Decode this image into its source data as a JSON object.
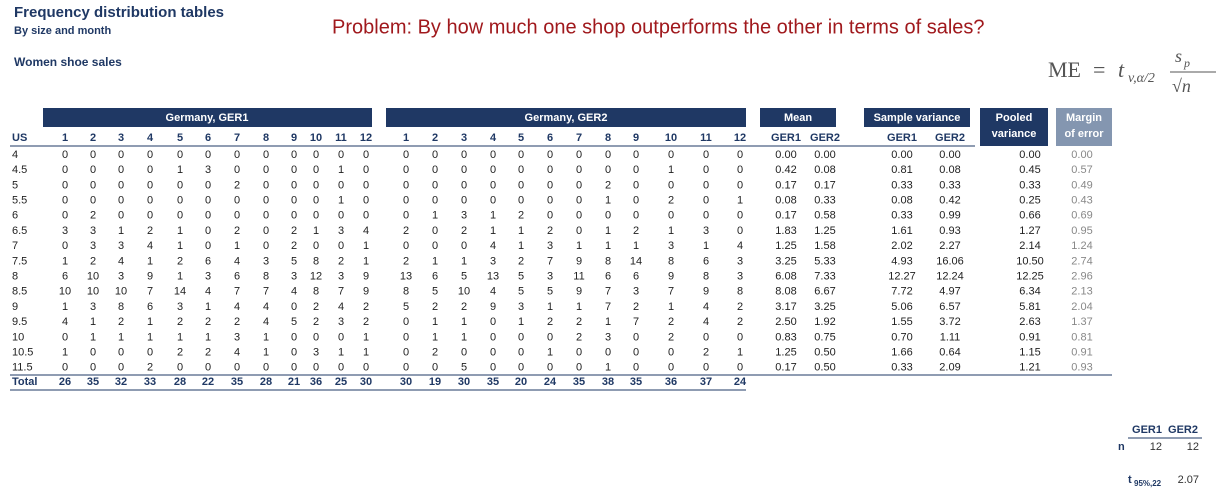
{
  "header": {
    "title": "Frequency distribution tables",
    "subtitle": "By size and month",
    "section": "Women shoe sales"
  },
  "problem": "Problem: By how much one shop outperforms the other in terms of sales?",
  "formula": {
    "lhs": "ME",
    "equals": "=",
    "t": "t",
    "t_sub": "v,α/2",
    "numerator": "s",
    "numerator_sub": "p",
    "denominator": "√n"
  },
  "table": {
    "group_titles": [
      "Germany, GER1",
      "Germany, GER2",
      "Mean",
      "Sample variance"
    ],
    "pooled_title": [
      "Pooled",
      "variance"
    ],
    "margin_title": [
      "Margin",
      "of error"
    ],
    "col_headers": [
      "US",
      "1",
      "2",
      "3",
      "4",
      "5",
      "6",
      "7",
      "8",
      "9",
      "10",
      "11",
      "12",
      "1",
      "2",
      "3",
      "4",
      "5",
      "6",
      "7",
      "8",
      "9",
      "10",
      "11",
      "12",
      "GER1",
      "GER2",
      "GER1",
      "GER2"
    ],
    "rows": [
      [
        "4",
        "0",
        "0",
        "0",
        "0",
        "0",
        "0",
        "0",
        "0",
        "0",
        "0",
        "0",
        "0",
        "0",
        "0",
        "0",
        "0",
        "0",
        "0",
        "0",
        "0",
        "0",
        "0",
        "0",
        "0",
        "0.00",
        "0.00",
        "0.00",
        "0.00",
        "0.00",
        "0.00"
      ],
      [
        "4.5",
        "0",
        "0",
        "0",
        "0",
        "1",
        "3",
        "0",
        "0",
        "0",
        "0",
        "1",
        "0",
        "0",
        "0",
        "0",
        "0",
        "0",
        "0",
        "0",
        "0",
        "0",
        "1",
        "0",
        "0",
        "0.42",
        "0.08",
        "0.81",
        "0.08",
        "0.45",
        "0.57"
      ],
      [
        "5",
        "0",
        "0",
        "0",
        "0",
        "0",
        "0",
        "2",
        "0",
        "0",
        "0",
        "0",
        "0",
        "0",
        "0",
        "0",
        "0",
        "0",
        "0",
        "0",
        "2",
        "0",
        "0",
        "0",
        "0",
        "0.17",
        "0.17",
        "0.33",
        "0.33",
        "0.33",
        "0.49"
      ],
      [
        "5.5",
        "0",
        "0",
        "0",
        "0",
        "0",
        "0",
        "0",
        "0",
        "0",
        "0",
        "1",
        "0",
        "0",
        "0",
        "0",
        "0",
        "0",
        "0",
        "0",
        "1",
        "0",
        "2",
        "0",
        "1",
        "0.08",
        "0.33",
        "0.08",
        "0.42",
        "0.25",
        "0.43"
      ],
      [
        "6",
        "0",
        "2",
        "0",
        "0",
        "0",
        "0",
        "0",
        "0",
        "0",
        "0",
        "0",
        "0",
        "0",
        "1",
        "3",
        "1",
        "2",
        "0",
        "0",
        "0",
        "0",
        "0",
        "0",
        "0",
        "0.17",
        "0.58",
        "0.33",
        "0.99",
        "0.66",
        "0.69"
      ],
      [
        "6.5",
        "3",
        "3",
        "1",
        "2",
        "1",
        "0",
        "2",
        "0",
        "2",
        "1",
        "3",
        "4",
        "2",
        "0",
        "2",
        "1",
        "1",
        "2",
        "0",
        "1",
        "2",
        "1",
        "3",
        "0",
        "1.83",
        "1.25",
        "1.61",
        "0.93",
        "1.27",
        "0.95"
      ],
      [
        "7",
        "0",
        "3",
        "3",
        "4",
        "1",
        "0",
        "1",
        "0",
        "2",
        "0",
        "0",
        "1",
        "0",
        "0",
        "0",
        "4",
        "1",
        "3",
        "1",
        "1",
        "1",
        "3",
        "1",
        "4",
        "1.25",
        "1.58",
        "2.02",
        "2.27",
        "2.14",
        "1.24"
      ],
      [
        "7.5",
        "1",
        "2",
        "4",
        "1",
        "2",
        "6",
        "4",
        "3",
        "5",
        "8",
        "2",
        "1",
        "2",
        "1",
        "1",
        "3",
        "2",
        "7",
        "9",
        "8",
        "14",
        "8",
        "6",
        "3",
        "3.25",
        "5.33",
        "4.93",
        "16.06",
        "10.50",
        "2.74"
      ],
      [
        "8",
        "6",
        "10",
        "3",
        "9",
        "1",
        "3",
        "6",
        "8",
        "3",
        "12",
        "3",
        "9",
        "13",
        "6",
        "5",
        "13",
        "5",
        "3",
        "11",
        "6",
        "6",
        "9",
        "8",
        "3",
        "6.08",
        "7.33",
        "12.27",
        "12.24",
        "12.25",
        "2.96"
      ],
      [
        "8.5",
        "10",
        "10",
        "10",
        "7",
        "14",
        "4",
        "7",
        "7",
        "4",
        "8",
        "7",
        "9",
        "8",
        "5",
        "10",
        "4",
        "5",
        "5",
        "9",
        "7",
        "3",
        "7",
        "9",
        "8",
        "8.08",
        "6.67",
        "7.72",
        "4.97",
        "6.34",
        "2.13"
      ],
      [
        "9",
        "1",
        "3",
        "8",
        "6",
        "3",
        "1",
        "4",
        "4",
        "0",
        "2",
        "4",
        "2",
        "5",
        "2",
        "2",
        "9",
        "3",
        "1",
        "1",
        "7",
        "2",
        "1",
        "4",
        "2",
        "3.17",
        "3.25",
        "5.06",
        "6.57",
        "5.81",
        "2.04"
      ],
      [
        "9.5",
        "4",
        "1",
        "2",
        "1",
        "2",
        "2",
        "2",
        "4",
        "5",
        "2",
        "3",
        "2",
        "0",
        "1",
        "1",
        "0",
        "1",
        "2",
        "2",
        "1",
        "7",
        "2",
        "4",
        "2",
        "2.50",
        "1.92",
        "1.55",
        "3.72",
        "2.63",
        "1.37"
      ],
      [
        "10",
        "0",
        "1",
        "1",
        "1",
        "1",
        "1",
        "3",
        "1",
        "0",
        "0",
        "0",
        "1",
        "0",
        "1",
        "1",
        "0",
        "0",
        "0",
        "2",
        "3",
        "0",
        "2",
        "0",
        "0",
        "0.83",
        "0.75",
        "0.70",
        "1.11",
        "0.91",
        "0.81"
      ],
      [
        "10.5",
        "1",
        "0",
        "0",
        "0",
        "2",
        "2",
        "4",
        "1",
        "0",
        "3",
        "1",
        "1",
        "0",
        "2",
        "0",
        "0",
        "0",
        "1",
        "0",
        "0",
        "0",
        "0",
        "2",
        "1",
        "1.25",
        "0.50",
        "1.66",
        "0.64",
        "1.15",
        "0.91"
      ],
      [
        "11.5",
        "0",
        "0",
        "0",
        "2",
        "0",
        "0",
        "0",
        "0",
        "0",
        "0",
        "0",
        "0",
        "0",
        "0",
        "5",
        "0",
        "0",
        "0",
        "0",
        "1",
        "0",
        "0",
        "0",
        "0",
        "0.17",
        "0.50",
        "0.33",
        "2.09",
        "1.21",
        "0.93"
      ]
    ],
    "total": [
      "Total",
      "26",
      "35",
      "32",
      "33",
      "28",
      "22",
      "35",
      "28",
      "21",
      "36",
      "25",
      "30",
      "30",
      "19",
      "30",
      "35",
      "20",
      "24",
      "35",
      "38",
      "35",
      "36",
      "37",
      "24"
    ]
  },
  "summary": {
    "headers": [
      "GER1",
      "GER2"
    ],
    "n_label": "n",
    "n": [
      "12",
      "12"
    ],
    "t_label": "t",
    "t_sub": "95%,22",
    "t_value": "2.07"
  }
}
